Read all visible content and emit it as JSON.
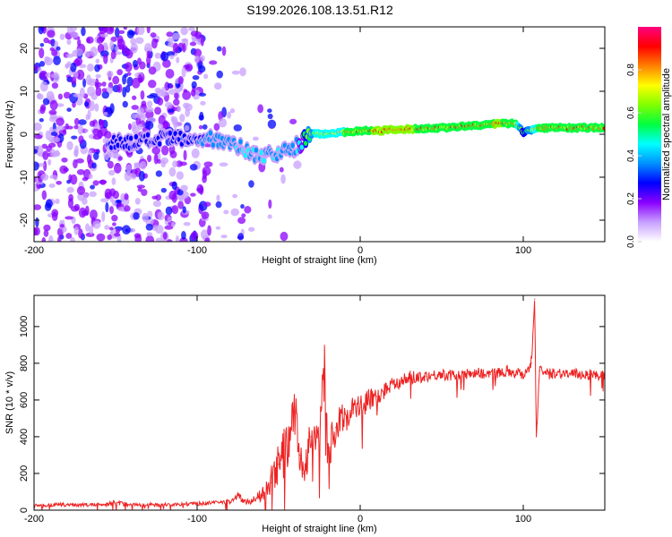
{
  "title": "S199.2026.108.13.51.R12",
  "chart_data": [
    {
      "type": "heatmap",
      "name": "spectrogram",
      "xlabel": "Height of straight line (km)",
      "ylabel": "Frequency (Hz)",
      "xlim": [
        -200,
        150
      ],
      "ylim": [
        -25,
        25
      ],
      "xticks": [
        -200,
        -100,
        0,
        100
      ],
      "yticks": [
        -20,
        -10,
        0,
        10,
        20
      ],
      "colorbar": {
        "label": "Normalized spectral amplitude",
        "range": [
          0,
          1
        ],
        "ticks": [
          "0.0",
          "0.2",
          "0.4",
          "0.6",
          "0.8"
        ],
        "colors": [
          "#ffffff",
          "#c8a0ff",
          "#8a00ff",
          "#0000ff",
          "#0090ff",
          "#00ffff",
          "#00ff40",
          "#80ff00",
          "#ffff00",
          "#ff8000",
          "#ff0000",
          "#ff0080"
        ]
      },
      "ridge": {
        "x": [
          -155,
          -140,
          -120,
          -100,
          -90,
          -80,
          -70,
          -60,
          -50,
          -40,
          -30,
          -20,
          -10,
          0,
          10,
          30,
          50,
          70,
          85,
          95,
          100,
          110,
          130,
          150
        ],
        "freq": [
          -1.5,
          -2,
          -1,
          -1.5,
          -1,
          -1.5,
          -4,
          -5,
          -4.5,
          -3,
          0,
          0.2,
          0.5,
          0.8,
          0.8,
          1.2,
          1.5,
          2,
          2.5,
          2.5,
          0.5,
          1.5,
          1.5,
          1.5
        ],
        "amplitude": [
          0.3,
          0.3,
          0.3,
          0.35,
          0.4,
          0.4,
          0.45,
          0.45,
          0.45,
          0.4,
          0.75,
          0.8,
          0.85,
          0.9,
          0.95,
          0.95,
          0.9,
          0.9,
          0.95,
          0.9,
          0.6,
          0.9,
          0.9,
          0.9
        ]
      },
      "noise_region_x": [
        -200,
        -30
      ]
    },
    {
      "type": "line",
      "name": "snr",
      "xlabel": "Height of straight line (km)",
      "ylabel": "SNR (10 * v/v)",
      "xlim": [
        -200,
        150
      ],
      "ylim": [
        0,
        1170
      ],
      "xticks": [
        -200,
        -100,
        0,
        100
      ],
      "yticks": [
        0,
        200,
        400,
        600,
        800,
        1000
      ],
      "color": "#ee2222",
      "x": [
        -200,
        -180,
        -160,
        -150,
        -140,
        -120,
        -100,
        -90,
        -80,
        -75,
        -70,
        -65,
        -60,
        -55,
        -50,
        -45,
        -40,
        -37,
        -35,
        -30,
        -25,
        -22,
        -20,
        -15,
        -10,
        -5,
        0,
        5,
        10,
        15,
        20,
        25,
        30,
        40,
        50,
        60,
        70,
        80,
        90,
        100,
        105,
        107,
        108,
        110,
        115,
        120,
        130,
        140,
        150
      ],
      "y": [
        25,
        30,
        28,
        40,
        30,
        30,
        35,
        40,
        45,
        80,
        40,
        60,
        80,
        150,
        250,
        350,
        520,
        300,
        200,
        400,
        350,
        870,
        300,
        450,
        500,
        550,
        560,
        600,
        620,
        650,
        700,
        700,
        720,
        730,
        740,
        730,
        750,
        740,
        760,
        740,
        800,
        1150,
        400,
        760,
        740,
        750,
        740,
        740,
        730
      ],
      "noise_amp": [
        10,
        10,
        10,
        15,
        10,
        10,
        10,
        10,
        15,
        20,
        15,
        20,
        40,
        80,
        120,
        150,
        150,
        100,
        80,
        120,
        100,
        100,
        100,
        100,
        90,
        80,
        70,
        60,
        50,
        50,
        40,
        40,
        40,
        30,
        30,
        30,
        30,
        30,
        30,
        30,
        40,
        0,
        0,
        30,
        30,
        30,
        30,
        30,
        30
      ]
    }
  ]
}
